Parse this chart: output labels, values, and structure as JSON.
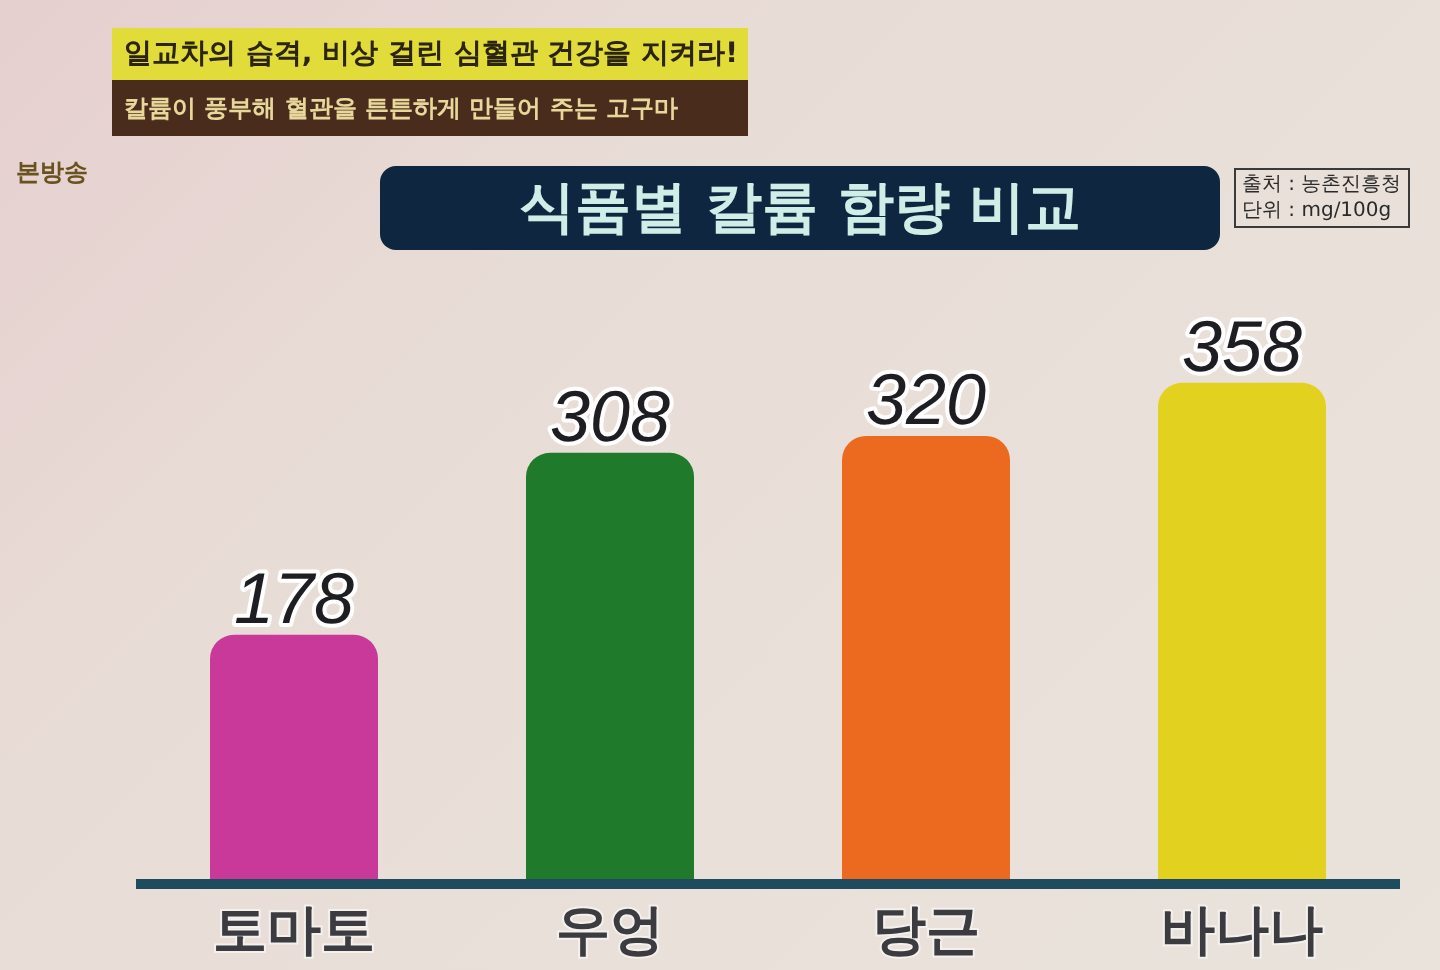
{
  "chart_data": {
    "type": "bar",
    "title": "식품별 칼륨 함량 비교",
    "annotations": [
      "일교차의 습격, 비상 걸린 심혈관 건강을 지켜라!",
      "칼륨이 풍부해 혈관을 튼튼하게 만들어 주는 고구마",
      "본방송",
      "출처 : 농촌진흥청",
      "단위 : mg/100g"
    ],
    "categories": [
      "토마토",
      "우엉",
      "당근",
      "바나나"
    ],
    "values": [
      178,
      308,
      320,
      358
    ],
    "colors": [
      "#c8399a",
      "#1f7a2c",
      "#ec6a1f",
      "#e3d11f"
    ],
    "data_labels": true,
    "tick_labels": "x"
  }
}
